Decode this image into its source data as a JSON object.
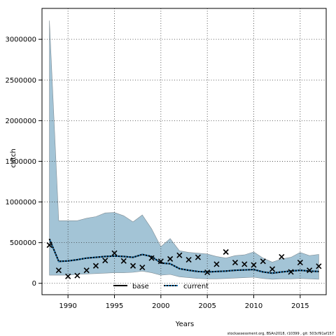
{
  "chart_data": {
    "type": "line",
    "xlabel": "Years",
    "ylabel": "catch",
    "xlim": [
      1987.2,
      2017.8
    ],
    "ylim": [
      -140000,
      3380000
    ],
    "x_ticks": [
      1990,
      1995,
      2000,
      2005,
      2010,
      2015
    ],
    "y_ticks": [
      0,
      500000,
      1000000,
      1500000,
      2000000,
      2500000,
      3000000
    ],
    "x_tick_labels": [
      "1990",
      "1995",
      "2000",
      "2005",
      "2010",
      "2015"
    ],
    "y_tick_labels": [
      "0",
      "500000",
      "1000000",
      "1500000",
      "2000000",
      "2500000",
      "3000000"
    ],
    "grid": true,
    "legend_position": "bottom-center",
    "x": [
      1988,
      1989,
      1990,
      1991,
      1992,
      1993,
      1994,
      1995,
      1996,
      1997,
      1998,
      1999,
      2000,
      2001,
      2002,
      2003,
      2004,
      2005,
      2006,
      2007,
      2008,
      2009,
      2010,
      2011,
      2012,
      2013,
      2014,
      2015,
      2016,
      2017
    ],
    "series": [
      {
        "name": "base",
        "style": "solid",
        "color": "#000000",
        "values": [
          545000,
          270000,
          275000,
          290000,
          310000,
          320000,
          330000,
          335000,
          330000,
          320000,
          355000,
          330000,
          250000,
          240000,
          180000,
          160000,
          145000,
          140000,
          145000,
          150000,
          160000,
          165000,
          170000,
          140000,
          125000,
          140000,
          150000,
          160000,
          150000,
          145000
        ]
      },
      {
        "name": "current",
        "style": "dotted",
        "color": "#1f77b4",
        "values": [
          545000,
          270000,
          275000,
          290000,
          310000,
          320000,
          330000,
          335000,
          330000,
          320000,
          355000,
          330000,
          250000,
          240000,
          180000,
          160000,
          145000,
          140000,
          145000,
          150000,
          160000,
          165000,
          170000,
          140000,
          125000,
          140000,
          150000,
          160000,
          150000,
          145000
        ]
      }
    ],
    "band": {
      "color": "#a3c4d6",
      "upper": [
        3230000,
        770000,
        770000,
        770000,
        800000,
        820000,
        865000,
        870000,
        830000,
        755000,
        840000,
        670000,
        450000,
        550000,
        400000,
        380000,
        370000,
        360000,
        330000,
        310000,
        340000,
        350000,
        385000,
        310000,
        260000,
        300000,
        320000,
        380000,
        340000,
        355000
      ],
      "lower": [
        100000,
        100000,
        100000,
        110000,
        115000,
        120000,
        125000,
        130000,
        130000,
        135000,
        150000,
        130000,
        100000,
        110000,
        80000,
        70000,
        60000,
        55000,
        55000,
        60000,
        65000,
        70000,
        75000,
        60000,
        50000,
        55000,
        55000,
        60000,
        55000,
        50000
      ]
    },
    "observations": {
      "marker": "x",
      "x": [
        1988,
        1989,
        1990,
        1991,
        1992,
        1993,
        1994,
        1995,
        1996,
        1997,
        1998,
        1999,
        2000,
        2001,
        2002,
        2003,
        2004,
        2005,
        2006,
        2007,
        2008,
        2009,
        2010,
        2011,
        2012,
        2013,
        2014,
        2015,
        2016,
        2017
      ],
      "values": [
        470000,
        160000,
        85000,
        95000,
        160000,
        215000,
        280000,
        370000,
        275000,
        215000,
        195000,
        310000,
        270000,
        300000,
        345000,
        290000,
        320000,
        135000,
        235000,
        385000,
        255000,
        235000,
        225000,
        270000,
        175000,
        325000,
        140000,
        255000,
        160000,
        210000
      ]
    },
    "footer": "stockassessment.org, BSAn2018, r10399 , git: 503cf91af157"
  }
}
